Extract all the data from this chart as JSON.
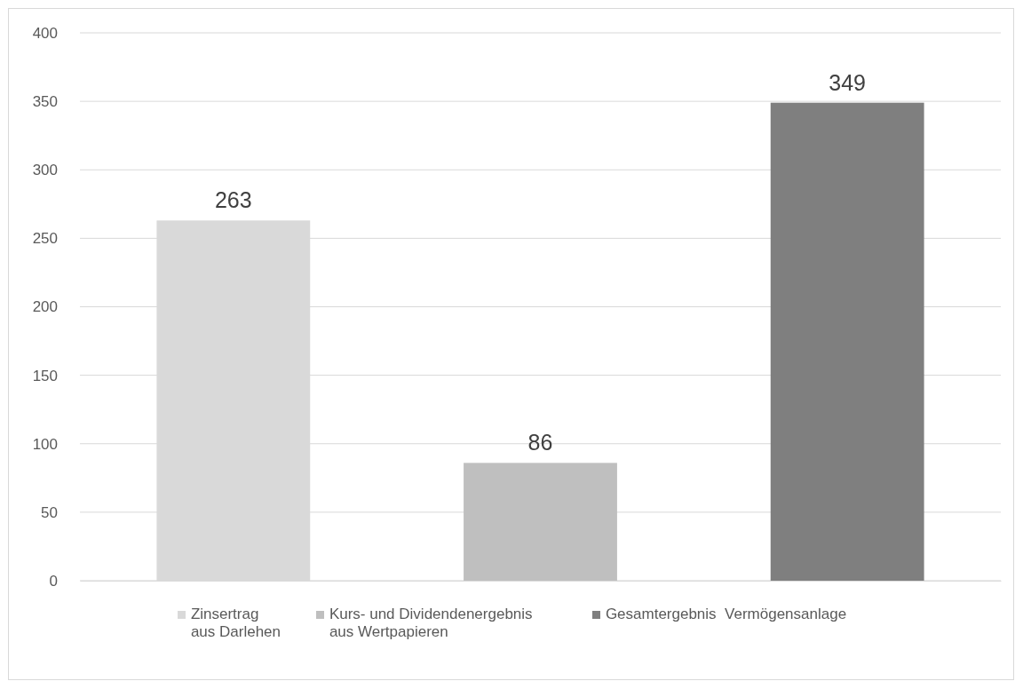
{
  "chart_data": {
    "type": "bar",
    "categories": [
      null,
      null,
      null
    ],
    "series": [
      {
        "name": "Zinsertrag aus Darlehen",
        "color": "#d9d9d9",
        "values": [
          263,
          null,
          null
        ]
      },
      {
        "name": "Kurs- und Dividendenergebnis aus Wertpapieren",
        "color": "#bfbfbf",
        "values": [
          null,
          86,
          null
        ]
      },
      {
        "name": "Gesamtergebnis  Vermögensanlage",
        "color": "#7f7f7f",
        "values": [
          null,
          null,
          349
        ]
      }
    ],
    "ylim": [
      0,
      400
    ],
    "yticks": [
      0,
      50,
      100,
      150,
      200,
      250,
      300,
      350,
      400
    ],
    "grid": "y",
    "legend": "bottom",
    "data_labels": true
  }
}
